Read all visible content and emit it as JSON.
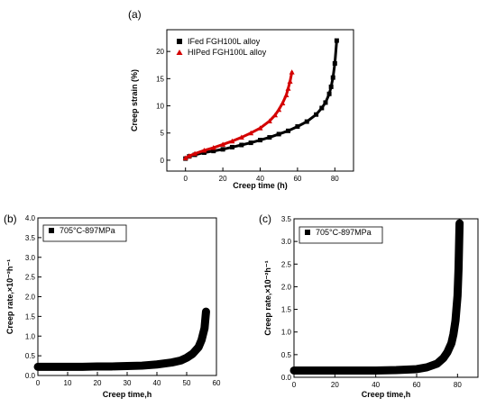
{
  "chart_data": [
    {
      "panel_label": "(a)",
      "type": "scatter",
      "xlabel": "Creep time (h)",
      "ylabel": "Creep strain (%)",
      "xlim": [
        -10,
        90
      ],
      "ylim": [
        -2,
        24
      ],
      "xticks": [
        0,
        20,
        40,
        60,
        80
      ],
      "yticks": [
        0,
        5,
        10,
        15,
        20
      ],
      "grid": false,
      "legend_position": "top-left",
      "series": [
        {
          "name": "IFed FGH100L alloy",
          "color": "#000000",
          "marker": "square",
          "x": [
            0,
            2,
            5,
            10,
            15,
            20,
            25,
            30,
            35,
            40,
            45,
            50,
            55,
            60,
            65,
            70,
            73,
            75,
            77,
            78,
            79,
            80,
            81
          ],
          "y": [
            0.3,
            0.7,
            1.0,
            1.4,
            1.7,
            2.0,
            2.4,
            2.8,
            3.2,
            3.7,
            4.2,
            4.8,
            5.4,
            6.2,
            7.1,
            8.4,
            9.6,
            10.6,
            12.2,
            13.5,
            15.2,
            17.8,
            22.0
          ]
        },
        {
          "name": "HIPed FGH100L alloy",
          "color": "#d40000",
          "marker": "triangle",
          "x": [
            0,
            2,
            5,
            10,
            15,
            20,
            25,
            30,
            35,
            40,
            45,
            48,
            50,
            52,
            54,
            55,
            56,
            57
          ],
          "y": [
            0.4,
            0.8,
            1.2,
            1.8,
            2.3,
            2.9,
            3.5,
            4.2,
            5.0,
            5.9,
            7.2,
            8.3,
            9.3,
            10.5,
            12.0,
            13.2,
            14.5,
            16.2
          ]
        }
      ]
    },
    {
      "panel_label": "(b)",
      "type": "scatter",
      "xlabel": "Creep time,h",
      "ylabel": "Creep rate,×10⁻²h⁻¹",
      "xlim": [
        0,
        60
      ],
      "ylim": [
        0,
        4.0
      ],
      "xticks": [
        0,
        10,
        20,
        30,
        40,
        50,
        60
      ],
      "yticks": [
        0.0,
        0.5,
        1.0,
        1.5,
        2.0,
        2.5,
        3.0,
        3.5,
        4.0
      ],
      "legend_position": "top-left",
      "series": [
        {
          "name": "705°C-897MPa",
          "color": "#000000",
          "marker": "square",
          "x": [
            0,
            5,
            10,
            15,
            20,
            25,
            30,
            35,
            40,
            45,
            48,
            50,
            52,
            54,
            55,
            56,
            56.5
          ],
          "y": [
            0.22,
            0.22,
            0.22,
            0.22,
            0.23,
            0.23,
            0.24,
            0.25,
            0.28,
            0.33,
            0.38,
            0.45,
            0.55,
            0.72,
            0.9,
            1.2,
            1.62
          ]
        }
      ]
    },
    {
      "panel_label": "(c)",
      "type": "scatter",
      "xlabel": "Creep time,h",
      "ylabel": "Creep rate,×10⁻²h⁻¹",
      "xlim": [
        0,
        90
      ],
      "ylim": [
        0,
        3.5
      ],
      "xticks": [
        0,
        20,
        40,
        60,
        80
      ],
      "yticks": [
        0.0,
        0.5,
        1.0,
        1.5,
        2.0,
        2.5,
        3.0,
        3.5
      ],
      "legend_position": "top-left",
      "series": [
        {
          "name": "705°C-897MPa",
          "color": "#000000",
          "marker": "square",
          "x": [
            0,
            10,
            20,
            30,
            40,
            50,
            60,
            65,
            70,
            73,
            75,
            77,
            78,
            79,
            80,
            80.5,
            81
          ],
          "y": [
            0.15,
            0.15,
            0.15,
            0.15,
            0.15,
            0.16,
            0.18,
            0.22,
            0.3,
            0.42,
            0.55,
            0.75,
            0.95,
            1.25,
            1.8,
            2.4,
            3.4
          ]
        }
      ]
    }
  ]
}
